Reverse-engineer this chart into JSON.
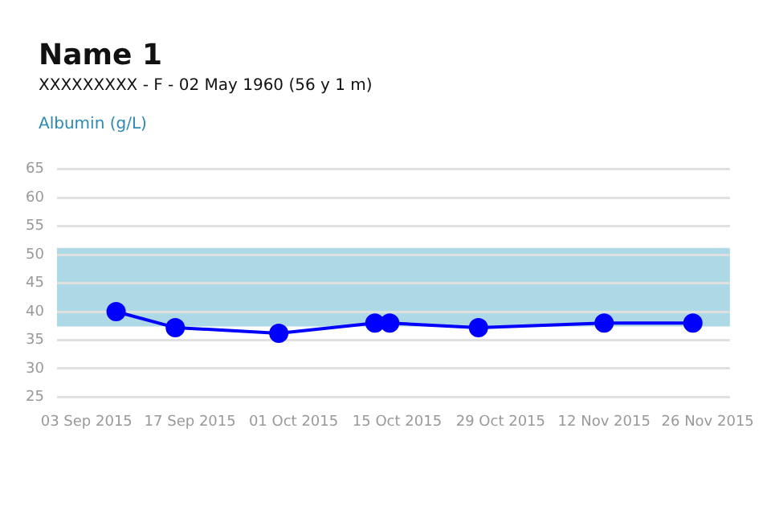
{
  "chart_data": {
    "type": "line",
    "title": "Name 1",
    "subtitle": "XXXXXXXXX - F - 02 May 1960 (56 y 1 m)",
    "ylabel": "Albumin (g/L)",
    "x": [
      "2015-09-07",
      "2015-09-15",
      "2015-09-29",
      "2015-10-12",
      "2015-10-14",
      "2015-10-26",
      "2015-11-12",
      "2015-11-24"
    ],
    "series": [
      {
        "color": "#0000ff",
        "values": [
          40,
          37.2,
          36.2,
          38,
          38,
          37.2,
          38,
          38
        ]
      }
    ],
    "xlim": [
      "2015-08-30",
      "2015-11-29"
    ],
    "xticks": [
      {
        "value": "2015-09-03",
        "label": "03 Sep 2015"
      },
      {
        "value": "2015-09-17",
        "label": "17 Sep 2015"
      },
      {
        "value": "2015-10-01",
        "label": "01 Oct 2015"
      },
      {
        "value": "2015-10-15",
        "label": "15 Oct 2015"
      },
      {
        "value": "2015-10-29",
        "label": "29 Oct 2015"
      },
      {
        "value": "2015-11-12",
        "label": "12 Nov 2015"
      },
      {
        "value": "2015-11-26",
        "label": "26 Nov 2015"
      }
    ],
    "ylim": [
      25,
      65
    ],
    "yticks": [
      25,
      30,
      35,
      40,
      45,
      50,
      55,
      60,
      65
    ],
    "bands": [
      {
        "axis": "y",
        "from": 37.4,
        "to": 51.2,
        "color": "#add8e6"
      }
    ],
    "grid": "y",
    "legend": false,
    "marker": "circle",
    "line_style": "solid"
  }
}
